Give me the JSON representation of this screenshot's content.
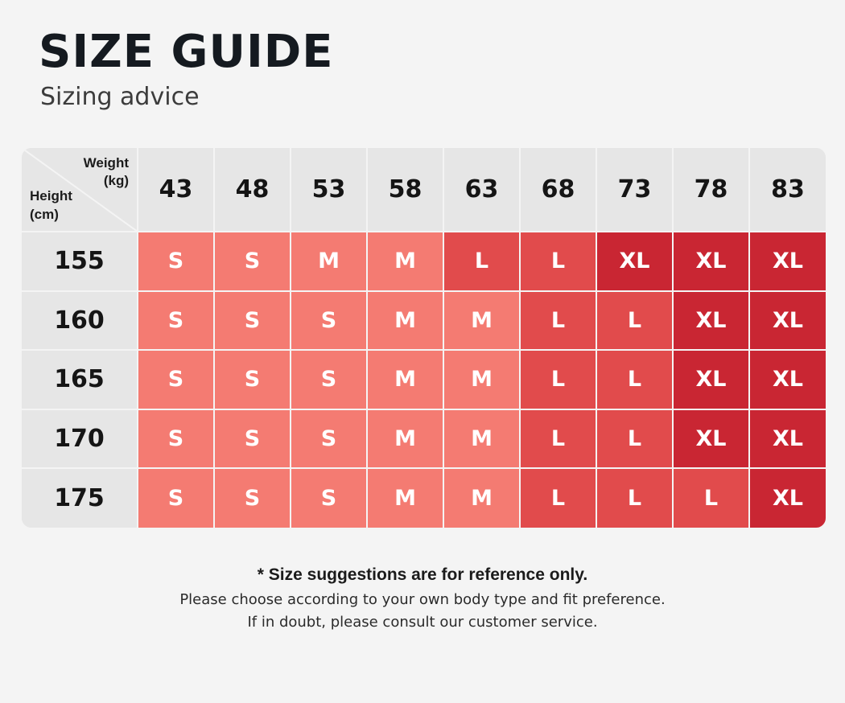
{
  "header": {
    "title": "SIZE GUIDE",
    "subtitle": "Sizing advice"
  },
  "table": {
    "weight_label": "Weight\n(kg)",
    "height_label": "Height\n(cm)",
    "weights": [
      "43",
      "48",
      "53",
      "58",
      "63",
      "68",
      "73",
      "78",
      "83"
    ],
    "rows": [
      {
        "height": "155",
        "sizes": [
          "S",
          "S",
          "M",
          "M",
          "L",
          "L",
          "XL",
          "XL",
          "XL"
        ]
      },
      {
        "height": "160",
        "sizes": [
          "S",
          "S",
          "S",
          "M",
          "M",
          "L",
          "L",
          "XL",
          "XL"
        ]
      },
      {
        "height": "165",
        "sizes": [
          "S",
          "S",
          "S",
          "M",
          "M",
          "L",
          "L",
          "XL",
          "XL"
        ]
      },
      {
        "height": "170",
        "sizes": [
          "S",
          "S",
          "S",
          "M",
          "M",
          "L",
          "L",
          "XL",
          "XL"
        ]
      },
      {
        "height": "175",
        "sizes": [
          "S",
          "S",
          "S",
          "M",
          "M",
          "L",
          "L",
          "L",
          "XL"
        ]
      }
    ],
    "size_colors": {
      "S": "#f47b72",
      "M": "#f47b72",
      "L": "#e14b4c",
      "XL": "#c92633"
    }
  },
  "footer": {
    "note_bold": "* Size suggestions are for reference only.",
    "note_line_1": "Please choose according to your own body type and fit preference.",
    "note_line_2": "If in doubt, please consult our customer service."
  }
}
